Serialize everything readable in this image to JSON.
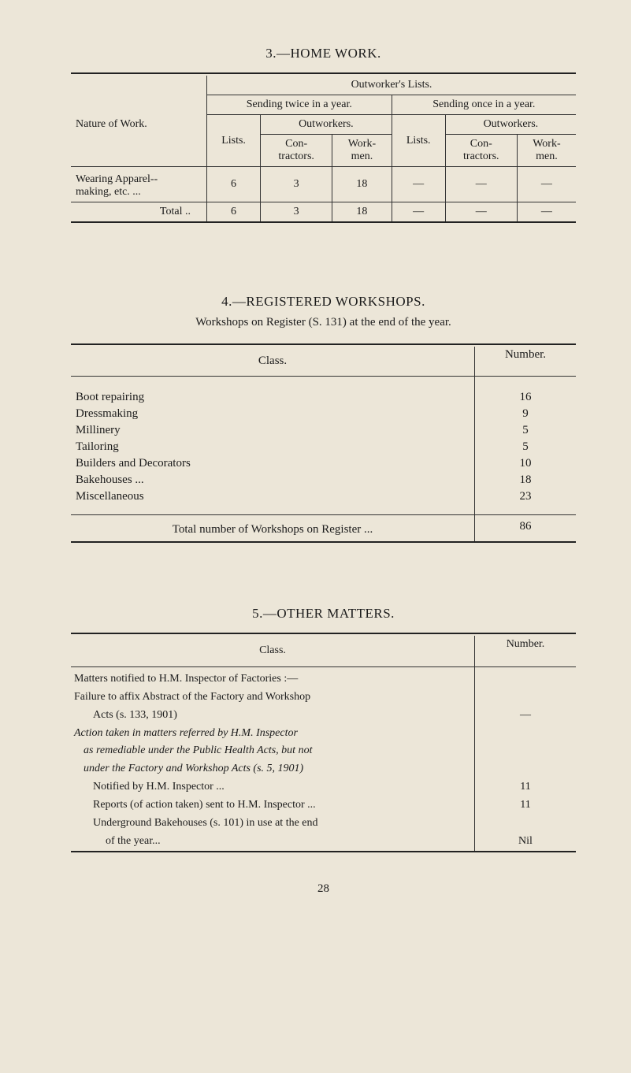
{
  "section3": {
    "title": "3.—HOME WORK.",
    "table": {
      "background": "#ece6d8",
      "grid_color": "#333333",
      "col_header_top": "Outworker's Lists.",
      "left_header": "Nature of Work.",
      "group_left": "Sending twice in a year.",
      "group_right": "Sending once in a year.",
      "lists_label": "Lists.",
      "outworkers_label": "Outworkers.",
      "con_label": "Con-\ntractors.",
      "work_label": "Work-\nmen.",
      "row1_label": "Wearing Apparel--\nmaking, etc.   ...",
      "row1": {
        "c1": "6",
        "c2": "3",
        "c3": "18",
        "c4": "—",
        "c5": "—",
        "c6": "—"
      },
      "total_label": "Total  ..",
      "total": {
        "c1": "6",
        "c2": "3",
        "c3": "18",
        "c4": "—",
        "c5": "—",
        "c6": "—"
      }
    }
  },
  "section4": {
    "title": "4.—REGISTERED  WORKSHOPS.",
    "subtitle": "Workshops on Register (S. 131) at the end of the year.",
    "class_header": "Class.",
    "number_header": "Number.",
    "rows": [
      {
        "label": "Boot repairing",
        "val": "16"
      },
      {
        "label": "Dressmaking",
        "val": "9"
      },
      {
        "label": "Millinery",
        "val": "5"
      },
      {
        "label": "Tailoring",
        "val": "5"
      },
      {
        "label": "Builders and Decorators",
        "val": "10"
      },
      {
        "label": "Bakehouses ...",
        "val": "18"
      },
      {
        "label": "Miscellaneous",
        "val": "23"
      }
    ],
    "total_label": "Total number of Workshops on Register   ...",
    "total_val": "86"
  },
  "section5": {
    "title": "5.—OTHER  MATTERS.",
    "class_header": "Class.",
    "number_header": "Number.",
    "body": {
      "l1": "Matters notified to H.M. Inspector of Factories :—",
      "l2": "Failure to affix Abstract of the Factory and Workshop",
      "l3": "Acts (s. 133, 1901)",
      "l4": "Action taken in matters referred by H.M. Inspector",
      "l5": "as remediable under the Public Health Acts, but not",
      "l6": "under the Factory and Workshop Acts (s. 5, 1901)",
      "l7": "Notified by H.M. Inspector ...",
      "l8": "Reports (of action taken) sent to H.M. Inspector ...",
      "l9": "Underground Bakehouses (s. 101) in use at the end",
      "l10": "of the year..."
    },
    "vals": {
      "v1": "—",
      "v7": "11",
      "v8": "11",
      "v10": "Nil"
    }
  },
  "page_number": "28"
}
